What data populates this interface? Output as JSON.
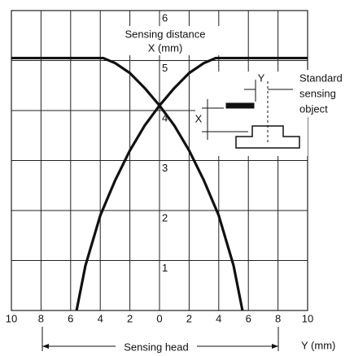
{
  "chart_data": {
    "type": "line",
    "title": "Sensing distance",
    "y_label": "X (mm)",
    "x_label": "Y (mm)",
    "annotations": {
      "head": "Sensing head",
      "object": [
        "Standard",
        "sensing",
        "object"
      ],
      "inset_y": "Y",
      "inset_x": "X"
    },
    "series": [
      {
        "color": "#111111",
        "x": [
          -5.6,
          -5,
          -4,
          -3,
          -2,
          -1,
          0,
          1,
          2,
          3,
          3.8,
          10
        ],
        "values": [
          0,
          0.9,
          1.9,
          2.6,
          3.2,
          3.7,
          4.1,
          4.45,
          4.75,
          4.95,
          5.05,
          5.05
        ]
      },
      {
        "color": "#111111",
        "x": [
          -10,
          -3.8,
          -3,
          -2,
          -1,
          0,
          1,
          2,
          3,
          4,
          5,
          5.6
        ],
        "values": [
          5.05,
          5.05,
          4.95,
          4.75,
          4.45,
          4.1,
          3.7,
          3.2,
          2.6,
          1.9,
          0.9,
          0
        ]
      }
    ],
    "xlim": [
      -10,
      10
    ],
    "xticks": [
      {
        "value": -10,
        "label": "10"
      },
      {
        "value": -8,
        "label": "8"
      },
      {
        "value": -6,
        "label": "6"
      },
      {
        "value": -4,
        "label": "4"
      },
      {
        "value": -2,
        "label": "2"
      },
      0,
      2,
      4,
      6,
      8,
      10
    ],
    "ylim": [
      0,
      6
    ],
    "yticks": [
      1,
      2,
      3,
      4,
      5,
      6
    ],
    "grid": true
  }
}
